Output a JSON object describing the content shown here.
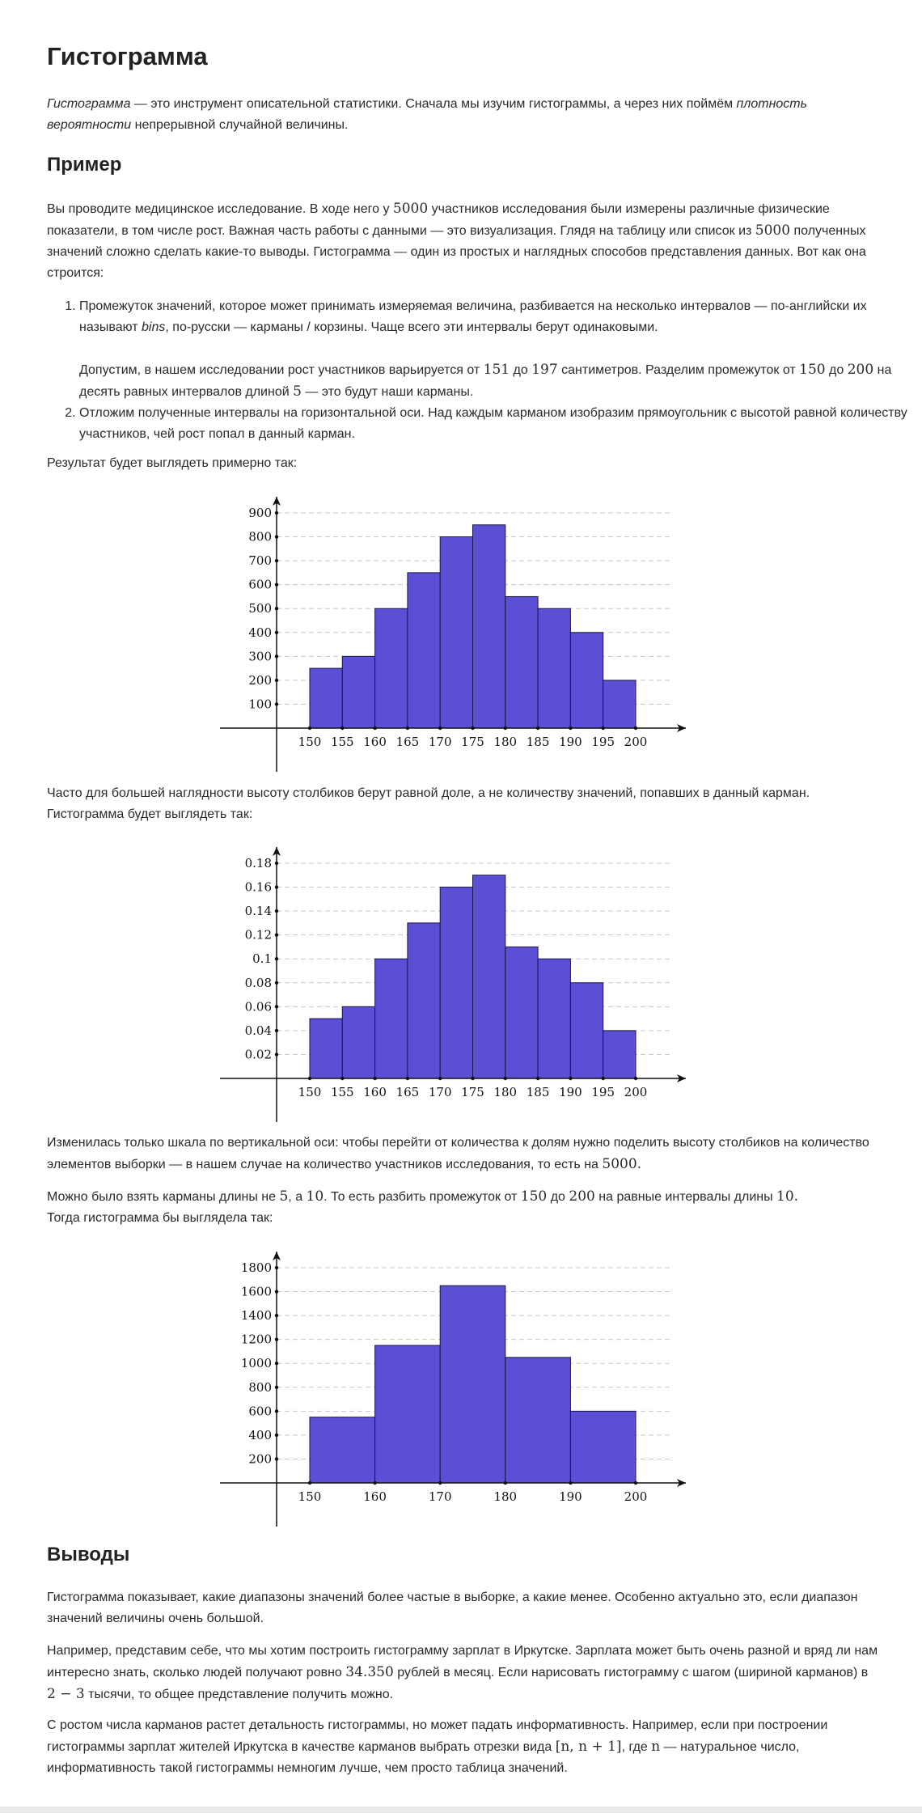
{
  "title": "Гистограмма",
  "intro": {
    "em1": "Гистограмма",
    "t1": " — это инструмент описательной статистики. Сначала мы изучим гистограммы, а через них поймём ",
    "em2": "плотность вероятности",
    "t2": " непрерывной случайной величины."
  },
  "section_example": "Пример",
  "para1": {
    "t1": "Вы проводите медицинское исследование. В ходе него у ",
    "m1": "5000",
    "t2": " участников исследования были измерены различные физические показатели, в том числе рост. Важная часть работы с данными — это визуализация. Глядя на таблицу или список из ",
    "m2": "5000",
    "t3": " полученных значений сложно сделать какие-то выводы. Гистограмма — один из простых и наглядных способов представления данных. Вот как она строится:"
  },
  "list": {
    "item1": {
      "t1": "Промежуток значений, которое может принимать измеряемая величина, разбивается на несколько интервалов — по-английски их называют ",
      "em": "bins",
      "t2": ", по-русски — карманы / корзины. Чаще всего эти интервалы берут одинаковыми.",
      "sub": {
        "t1": "Допустим, в нашем исследовании рост участников варьируется от ",
        "m1": "151",
        "t2": " до ",
        "m2": "197",
        "t3": " сантиметров. Разделим промежуток от ",
        "m3": "150",
        "t4": " до ",
        "m4": "200",
        "t5": " на десять равных интервалов длиной ",
        "m5": "5",
        "t6": " — это будут наши карманы."
      }
    },
    "item2": "Отложим полученные интервалы на горизонтальной оси. Над каждым карманом изобразим прямоугольник с высотой равной количеству участников, чей рост попал в данный карман."
  },
  "result_text": "Результат будет выглядеть примерно так:",
  "para_share": "Часто для большей наглядности высоту столбиков берут равной доле, а не количеству значений, попавших в данный карман. Гистограмма будет выглядеть так:",
  "para_scale": {
    "t1": "Изменилась только шкала по вертикальной оси: чтобы перейти от количества к долям нужно поделить высоту столбиков на количество элементов выборки — в нашем случае на количество участников исследования, то есть на ",
    "m1": "5000.",
    "t2": ""
  },
  "para_bins10": {
    "t1": "Можно было взять карманы длины не ",
    "m1": "5",
    "t2": ", а ",
    "m2": "10",
    "t3": ". То есть разбить промежуток от ",
    "m3": "150",
    "t4": " до ",
    "m4": "200",
    "t5": " на равные интервалы длины ",
    "m5": "10.",
    "t6": " Тогда гистограмма бы выглядела так:"
  },
  "section_conclusions": "Выводы",
  "concl1": "Гистограмма показывает, какие диапазоны значений более частые в выборке, а какие менее. Особенно актуально это, если диапазон значений величины очень большой.",
  "concl2": {
    "t1": "Например, представим себе, что мы хотим построить гистограмму зарплат в Иркутске. Зарплата может быть очень разной и вряд ли нам интересно знать, сколько людей получают ровно ",
    "m1": "34.350",
    "t2": " рублей в месяц. Если нарисовать гистограмму с шагом (шириной карманов) в ",
    "m2": "2 − 3",
    "t3": " тысячи, то общее представление получить можно."
  },
  "concl3": {
    "t1": "С ростом числа карманов растет детальность гистограммы, но может падать информативность. Например, если при построении гистограммы зарплат жителей Иркутска в качестве карманов выбрать отрезки вида ",
    "m1": "[n, n + 1]",
    "t2": ", где ",
    "m2": "n",
    "t3": " — натуральное число, информативность такой гистограммы немногим лучше, чем просто таблица значений."
  },
  "colors": {
    "bar_fill": "#5b4fd6",
    "bar_stroke": "#1a1540",
    "grid": "#c8c8c8",
    "axis": "#111111"
  },
  "chart_data": [
    {
      "type": "bar",
      "edges": [
        150,
        155,
        160,
        165,
        170,
        175,
        180,
        185,
        190,
        195,
        200
      ],
      "values": [
        250,
        300,
        500,
        650,
        800,
        850,
        550,
        500,
        400,
        200
      ],
      "xticks": [
        "150",
        "155",
        "160",
        "165",
        "170",
        "175",
        "180",
        "185",
        "190",
        "195",
        "200"
      ],
      "yticks": [
        "100",
        "200",
        "300",
        "400",
        "500",
        "600",
        "700",
        "800",
        "900"
      ],
      "ylim": [
        0,
        900
      ],
      "grid": "horizontal dashed"
    },
    {
      "type": "bar",
      "edges": [
        150,
        155,
        160,
        165,
        170,
        175,
        180,
        185,
        190,
        195,
        200
      ],
      "values": [
        0.05,
        0.06,
        0.1,
        0.13,
        0.16,
        0.17,
        0.11,
        0.1,
        0.08,
        0.04
      ],
      "xticks": [
        "150",
        "155",
        "160",
        "165",
        "170",
        "175",
        "180",
        "185",
        "190",
        "195",
        "200"
      ],
      "yticks": [
        "0.02",
        "0.04",
        "0.06",
        "0.08",
        "0.1",
        "0.12",
        "0.14",
        "0.16",
        "0.18"
      ],
      "ylim": [
        0,
        0.18
      ],
      "grid": "horizontal dashed"
    },
    {
      "type": "bar",
      "edges": [
        150,
        160,
        170,
        180,
        190,
        200
      ],
      "values": [
        550,
        1150,
        1650,
        1050,
        600
      ],
      "xticks": [
        "150",
        "160",
        "170",
        "180",
        "190",
        "200"
      ],
      "yticks": [
        "200",
        "400",
        "600",
        "800",
        "1000",
        "1200",
        "1400",
        "1600",
        "1800"
      ],
      "ylim": [
        0,
        1800
      ],
      "grid": "horizontal dashed"
    }
  ]
}
